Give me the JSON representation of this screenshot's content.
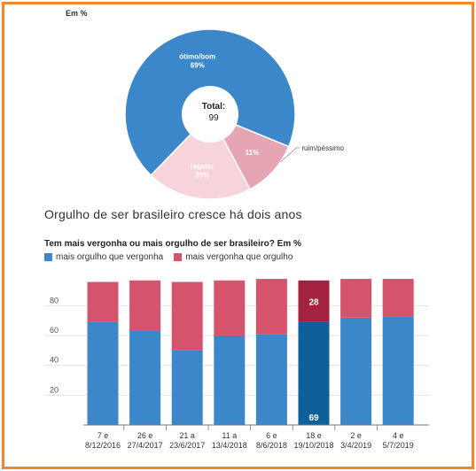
{
  "chart_data": [
    {
      "type": "pie",
      "unit_label": "Em %",
      "center_label": "Total:",
      "center_value": "99",
      "slices": [
        {
          "label": "ótimo/bom",
          "value": 69,
          "value_label": "69%",
          "color": "#3b87c9"
        },
        {
          "label": "ruim/péssimo",
          "value": 11,
          "value_label": "11%",
          "color": "#e6a5b3"
        },
        {
          "label": "regular",
          "value": 20,
          "value_label": "20%",
          "color": "#f7d3dc"
        }
      ]
    },
    {
      "type": "bar",
      "title": "Orgulho de ser brasileiro cresce há dois anos",
      "subtitle": "Tem mais vergonha ou mais orgulho de ser brasileiro? Em %",
      "categories": [
        [
          "7 e",
          "8/12/2016"
        ],
        [
          "26 e",
          "27/4/2017"
        ],
        [
          "21 a",
          "23/6/2017"
        ],
        [
          "11 a",
          "13/4/2018"
        ],
        [
          "6 e",
          "8/6/2018"
        ],
        [
          "18 e",
          "19/10/2018"
        ],
        [
          "2 e",
          "3/4/2019"
        ],
        [
          "4 e",
          "5/7/2019"
        ]
      ],
      "series": [
        {
          "name": "mais orgulho que vergonha",
          "color": "#3b87c9",
          "highlight_color": "#0f5f9a",
          "values": [
            69,
            63,
            50,
            60,
            61,
            69,
            72,
            73
          ]
        },
        {
          "name": "mais vergonha que orgulho",
          "color": "#d5536d",
          "highlight_color": "#a3223f",
          "values": [
            27,
            34,
            46,
            37,
            37,
            28,
            26,
            25
          ]
        }
      ],
      "highlight_index": 5,
      "highlight_labels": {
        "upper": "28",
        "lower": "69"
      },
      "ylim": [
        0,
        100
      ],
      "yticks": [
        20,
        40,
        60,
        80
      ],
      "grid": true
    }
  ]
}
